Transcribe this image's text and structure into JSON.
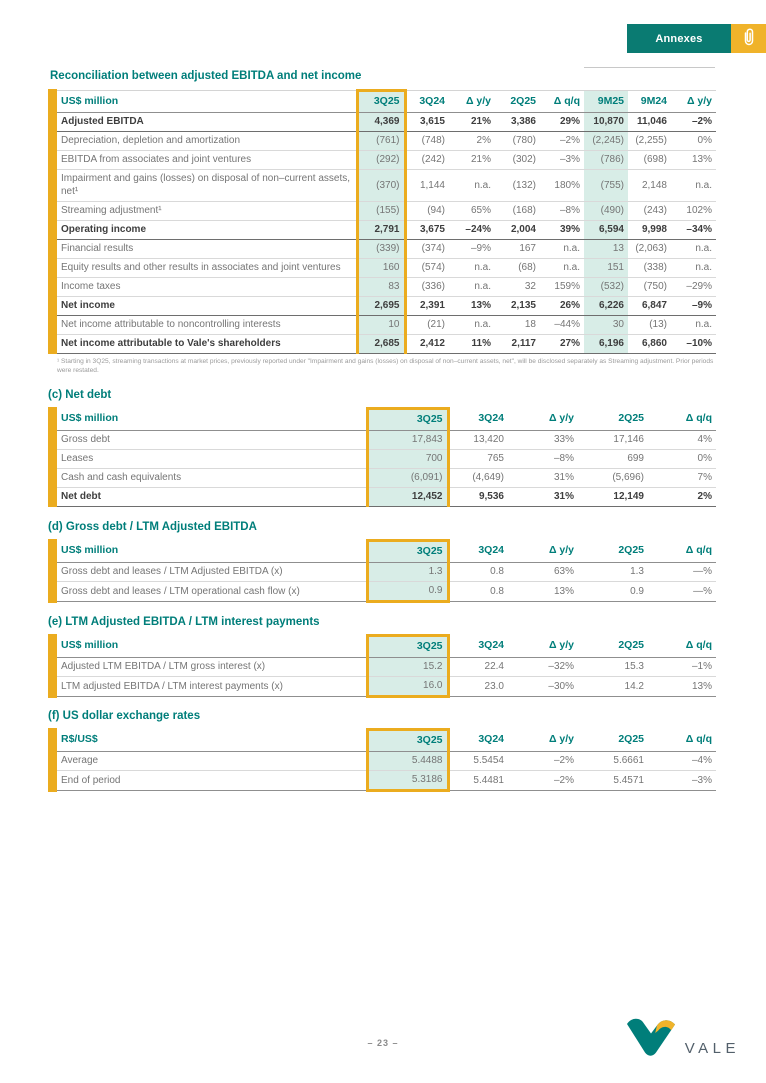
{
  "colors": {
    "teal": "#007E7A",
    "amber": "#EBAC1F",
    "mint": "#D8EDE7",
    "button_yellow": "#F0B32A",
    "body_text": "#757575",
    "bold_text": "#3E3E3E"
  },
  "header": {
    "annexes_label": "Annexes",
    "paperclip_icon": "paperclip"
  },
  "title": "Reconciliation between adjusted EBITDA and net income",
  "tables": {
    "reconciliation": {
      "headers": [
        "US$ million",
        "3Q25",
        "3Q24",
        "Δ y/y",
        "2Q25",
        "Δ q/q",
        "9M25",
        "9M24",
        "Δ y/y"
      ],
      "rows": [
        {
          "label": "Adjusted EBITDA",
          "bold": true,
          "values": [
            "4,369",
            "3,615",
            "21%",
            "3,386",
            "29%",
            "10,870",
            "11,046",
            "–2%"
          ]
        },
        {
          "label": "Depreciation, depletion and amortization",
          "bold": false,
          "values": [
            "(761)",
            "(748)",
            "2%",
            "(780)",
            "–2%",
            "(2,245)",
            "(2,255)",
            "0%"
          ]
        },
        {
          "label": "EBITDA from associates and joint ventures",
          "bold": false,
          "values": [
            "(292)",
            "(242)",
            "21%",
            "(302)",
            "–3%",
            "(786)",
            "(698)",
            "13%"
          ]
        },
        {
          "label": "Impairment and gains (losses) on disposal of non–current assets, net¹",
          "bold": false,
          "values": [
            "(370)",
            "1,144",
            "n.a.",
            "(132)",
            "180%",
            "(755)",
            "2,148",
            "n.a."
          ]
        },
        {
          "label": "Streaming adjustment¹",
          "bold": false,
          "values": [
            "(155)",
            "(94)",
            "65%",
            "(168)",
            "–8%",
            "(490)",
            "(243)",
            "102%"
          ]
        },
        {
          "label": "Operating income",
          "bold": true,
          "values": [
            "2,791",
            "3,675",
            "–24%",
            "2,004",
            "39%",
            "6,594",
            "9,998",
            "–34%"
          ]
        },
        {
          "label": "Financial results",
          "bold": false,
          "values": [
            "(339)",
            "(374)",
            "–9%",
            "167",
            "n.a.",
            "13",
            "(2,063)",
            "n.a."
          ]
        },
        {
          "label": "Equity results and other results in associates and joint ventures",
          "bold": false,
          "values": [
            "160",
            "(574)",
            "n.a.",
            "(68)",
            "n.a.",
            "151",
            "(338)",
            "n.a."
          ]
        },
        {
          "label": "Income taxes",
          "bold": false,
          "values": [
            "83",
            "(336)",
            "n.a.",
            "32",
            "159%",
            "(532)",
            "(750)",
            "–29%"
          ]
        },
        {
          "label": "Net income",
          "bold": true,
          "values": [
            "2,695",
            "2,391",
            "13%",
            "2,135",
            "26%",
            "6,226",
            "6,847",
            "–9%"
          ]
        },
        {
          "label": "Net income attributable to noncontrolling interests",
          "bold": false,
          "values": [
            "10",
            "(21)",
            "n.a.",
            "18",
            "–44%",
            "30",
            "(13)",
            "n.a."
          ]
        },
        {
          "label": "Net income attributable to Vale's shareholders",
          "bold": true,
          "values": [
            "2,685",
            "2,412",
            "11%",
            "2,117",
            "27%",
            "6,196",
            "6,860",
            "–10%"
          ]
        }
      ],
      "footnote": "¹ Starting in 3Q25, streaming transactions at market prices, previously reported under \"Impairment and gains (losses) on disposal of non–current assets, net\", will be disclosed separately as Streaming adjustment. Prior periods were restated."
    },
    "net_debt": {
      "heading": "(c) Net debt",
      "headers": [
        "US$ million",
        "3Q25",
        "3Q24",
        "Δ y/y",
        "2Q25",
        "Δ q/q"
      ],
      "rows": [
        {
          "label": "Gross debt",
          "bold": false,
          "values": [
            "17,843",
            "13,420",
            "33%",
            "17,146",
            "4%"
          ]
        },
        {
          "label": "Leases",
          "bold": false,
          "values": [
            "700",
            "765",
            "–8%",
            "699",
            "0%"
          ]
        },
        {
          "label": "Cash and cash equivalents",
          "bold": false,
          "values": [
            "(6,091)",
            "(4,649)",
            "31%",
            "(5,696)",
            "7%"
          ]
        },
        {
          "label": "Net debt",
          "bold": true,
          "values": [
            "12,452",
            "9,536",
            "31%",
            "12,149",
            "2%"
          ]
        }
      ]
    },
    "gross_debt_ltm": {
      "heading": "(d) Gross debt / LTM Adjusted EBITDA",
      "headers": [
        "US$ million",
        "3Q25",
        "3Q24",
        "Δ y/y",
        "2Q25",
        "Δ q/q"
      ],
      "rows": [
        {
          "label": "Gross debt and leases / LTM Adjusted EBITDA (x)",
          "bold": false,
          "values": [
            "1.3",
            "0.8",
            "63%",
            "1.3",
            "—%"
          ]
        },
        {
          "label": "Gross debt and leases / LTM operational cash flow (x)",
          "bold": false,
          "values": [
            "0.9",
            "0.8",
            "13%",
            "0.9",
            "—%"
          ]
        }
      ]
    },
    "ltm_interest_payments": {
      "heading": "(e) LTM Adjusted EBITDA / LTM interest payments",
      "headers": [
        "US$ million",
        "3Q25",
        "3Q24",
        "Δ y/y",
        "2Q25",
        "Δ q/q"
      ],
      "rows": [
        {
          "label": "Adjusted LTM EBITDA / LTM gross interest (x)",
          "bold": false,
          "values": [
            "15.2",
            "22.4",
            "–32%",
            "15.3",
            "–1%"
          ]
        },
        {
          "label": "LTM adjusted EBITDA / LTM interest payments (x)",
          "bold": false,
          "values": [
            "16.0",
            "23.0",
            "–30%",
            "14.2",
            "13%"
          ]
        }
      ]
    },
    "fx_rates": {
      "heading": "(f) US dollar exchange rates",
      "headers": [
        "R$/US$",
        "3Q25",
        "3Q24",
        "Δ y/y",
        "2Q25",
        "Δ q/q"
      ],
      "rows": [
        {
          "label": "Average",
          "bold": false,
          "values": [
            "5.4488",
            "5.5454",
            "–2%",
            "5.6661",
            "–4%"
          ]
        },
        {
          "label": "End of period",
          "bold": false,
          "values": [
            "5.3186",
            "5.4481",
            "–2%",
            "5.4571",
            "–3%"
          ]
        }
      ]
    }
  },
  "footer": {
    "page_number": "– 23 –",
    "brand": "VALE"
  }
}
